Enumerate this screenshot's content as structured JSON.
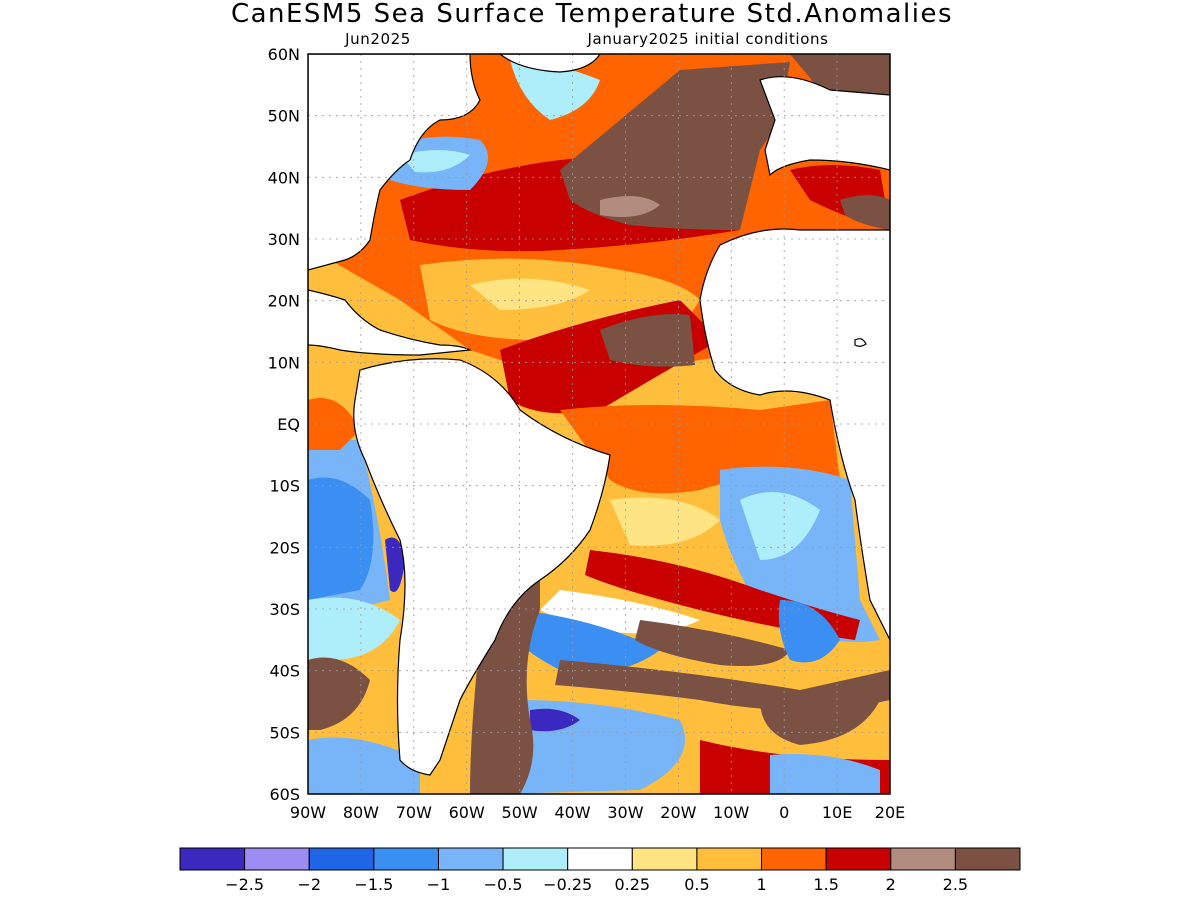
{
  "title": "CanESM5 Sea Surface Temperature Std.Anomalies",
  "subtitle_left": "Jun2025",
  "subtitle_right": "January2025 initial conditions",
  "lat_labels": [
    "60N",
    "50N",
    "40N",
    "30N",
    "20N",
    "10N",
    "EQ",
    "10S",
    "20S",
    "30S",
    "40S",
    "50S",
    "60S"
  ],
  "lon_labels": [
    "90W",
    "80W",
    "70W",
    "60W",
    "50W",
    "40W",
    "30W",
    "20W",
    "10W",
    "0",
    "10E",
    "20E"
  ],
  "colorbar": {
    "colors": [
      "#3b28be",
      "#9d8cf4",
      "#1f65e6",
      "#3c8ff2",
      "#77b4f8",
      "#aeeefa",
      "#ffffff",
      "#ffe483",
      "#ffbf3c",
      "#ff6400",
      "#c80000",
      "#b38c80",
      "#7a5142"
    ],
    "labels": [
      "−2.5",
      "−2",
      "−1.5",
      "−1",
      "−0.5",
      "−0.25",
      "0.25",
      "0.5",
      "1",
      "1.5",
      "2",
      "2.5"
    ]
  },
  "colors": {
    "land": "#ffffff",
    "coast": "#000000",
    "grid": "#9a9a9a"
  }
}
